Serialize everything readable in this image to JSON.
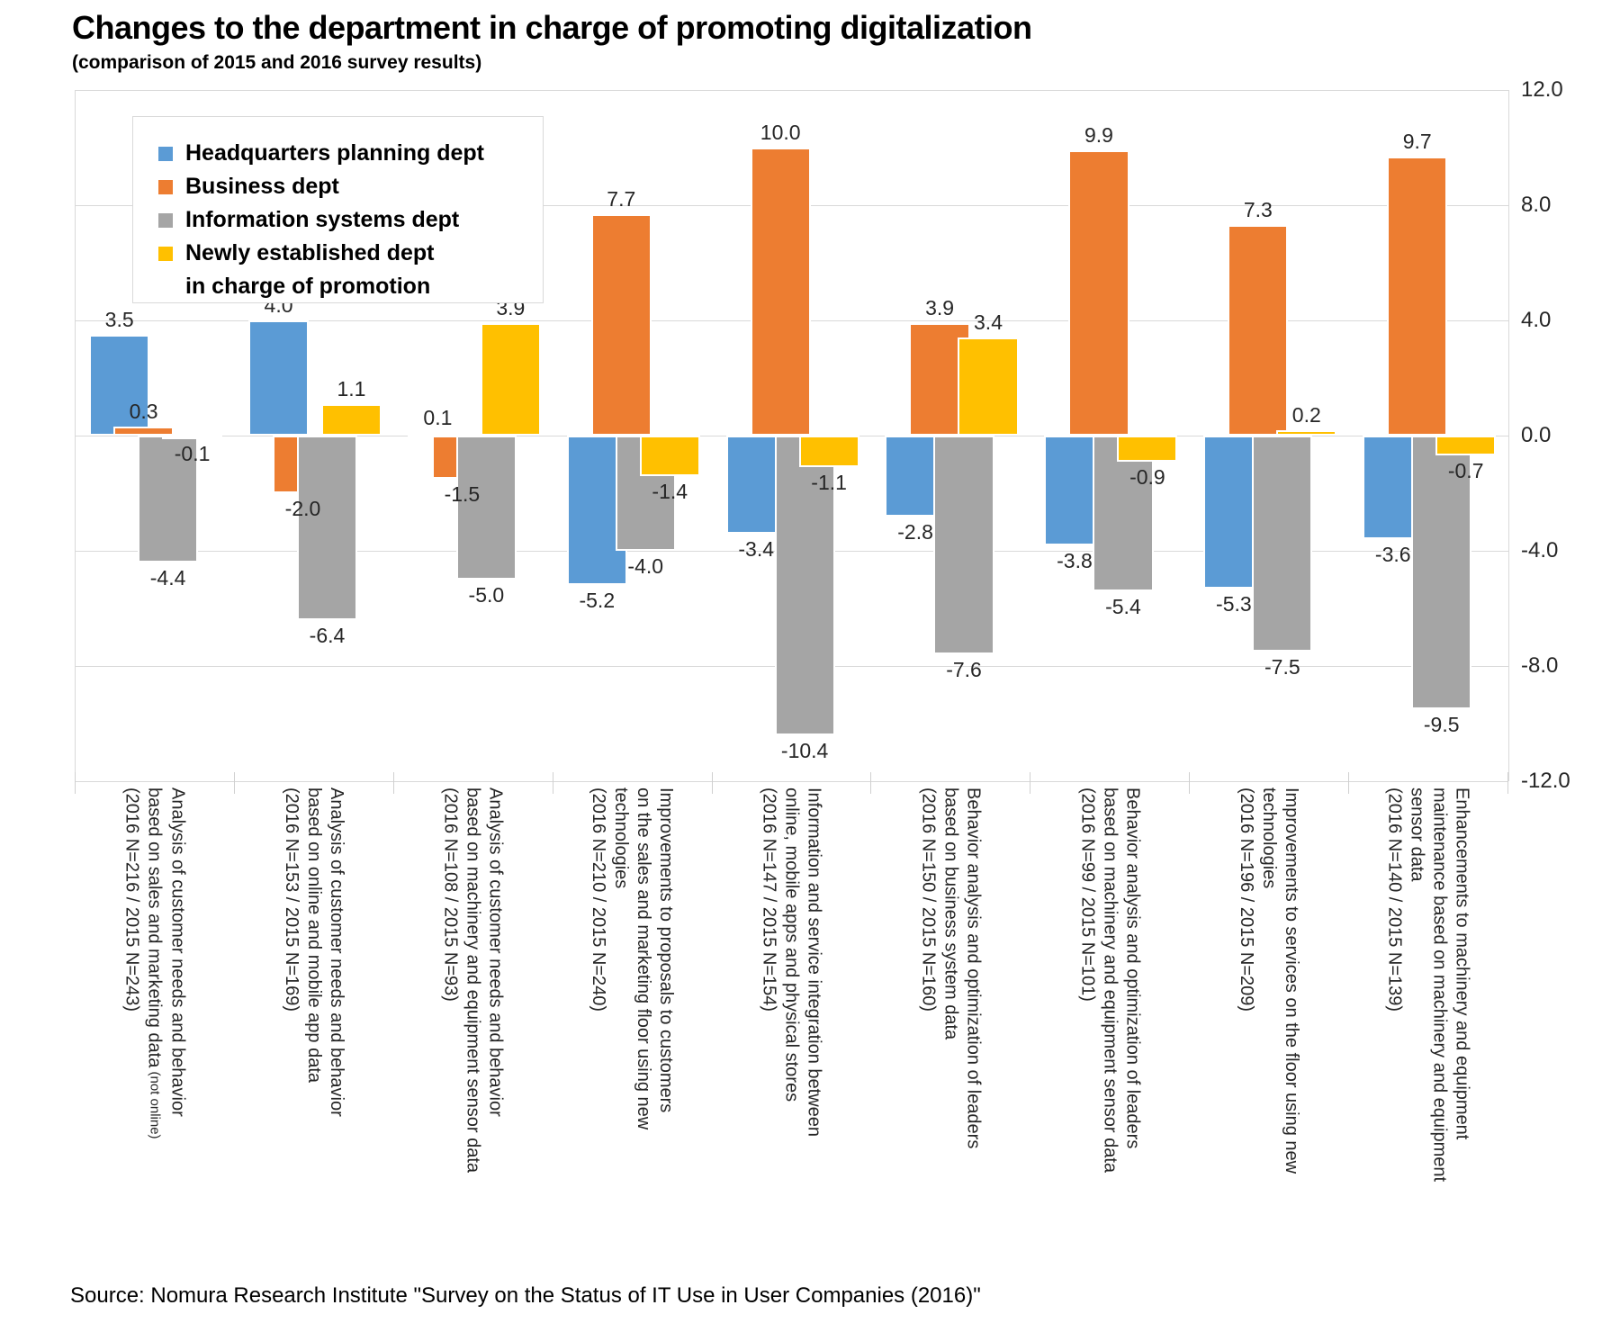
{
  "chart_data": {
    "type": "bar",
    "title": "Changes to the department in charge of promoting digitalization",
    "subtitle": "(comparison of 2015 and 2016 survey results)",
    "source_note": "Source: Nomura Research Institute \"Survey on the Status of IT Use in User Companies (2016)\"",
    "ylim": [
      -12.0,
      12.0
    ],
    "ytick_labels": [
      "12.0",
      "8.0",
      "4.0",
      "0.0",
      "-4.0",
      "-8.0",
      "-12.0"
    ],
    "grid": true,
    "legend_position": "top-left",
    "gridline_color": "#D9D9D9",
    "label_color": "#262626",
    "series": [
      {
        "name": "Headquarters planning dept",
        "legend_lines": [
          "Headquarters planning dept"
        ],
        "color": "#5B9BD5",
        "values": [
          3.5,
          4.0,
          0.1,
          -5.2,
          -3.4,
          -2.8,
          -3.8,
          -5.3,
          -3.6
        ]
      },
      {
        "name": "Business dept",
        "legend_lines": [
          "Business dept"
        ],
        "color": "#ED7D31",
        "values": [
          0.3,
          -2.0,
          -1.5,
          7.7,
          10.0,
          3.9,
          9.9,
          7.3,
          9.7
        ]
      },
      {
        "name": "Information systems dept",
        "legend_lines": [
          "Information systems dept"
        ],
        "color": "#A5A5A5",
        "values": [
          -4.4,
          -6.4,
          -5.0,
          -4.0,
          -10.4,
          -7.6,
          -5.4,
          -7.5,
          -9.5
        ]
      },
      {
        "name": "Newly established dept in charge of promotion",
        "legend_lines": [
          "Newly established dept",
          "in charge of promotion"
        ],
        "color": "#FFC000",
        "values": [
          -0.1,
          1.1,
          3.9,
          -1.4,
          -1.1,
          3.4,
          -0.9,
          0.2,
          -0.7
        ]
      }
    ],
    "categories": [
      {
        "lines": [
          "Analysis of customer needs and behavior",
          "based on sales and marketing data",
          "(2016 N=216 / 2015 N=243)"
        ],
        "note": "(not online)",
        "note_after_line": 2
      },
      {
        "lines": [
          "Analysis of customer needs and behavior",
          "based on online and mobile app data",
          "(2016 N=153 / 2015 N=169)"
        ]
      },
      {
        "lines": [
          "Analysis of customer needs and behavior",
          "based on machinery and equipment sensor data",
          "(2016 N=108 / 2015 N=93)"
        ]
      },
      {
        "lines": [
          "Improvements to proposals to customers",
          "on the sales and marketing floor using new",
          "technologies",
          "(2016 N=210 / 2015 N=240)"
        ]
      },
      {
        "lines": [
          "Information and service integration between",
          "online, mobile apps and physical stores",
          "(2016 N=147 / 2015 N=154)"
        ]
      },
      {
        "lines": [
          "Behavior analysis and optimization of leaders",
          "based on business system data",
          "(2016 N=150 / 2015 N=160)"
        ]
      },
      {
        "lines": [
          "Behavior analysis and optimization of leaders",
          "based on machinery and equipment sensor data",
          "(2016 N=99 / 2015 N=101)"
        ]
      },
      {
        "lines": [
          "Improvements to services on the floor using new",
          "technologies",
          "(2016 N=196 / 2015 N=209)"
        ]
      },
      {
        "lines": [
          "Enhancements to machinery and equipment",
          "maintenance based on machinery and equipment",
          "sensor data",
          "(2016 N=140 / 2015 N=139)"
        ]
      }
    ]
  }
}
